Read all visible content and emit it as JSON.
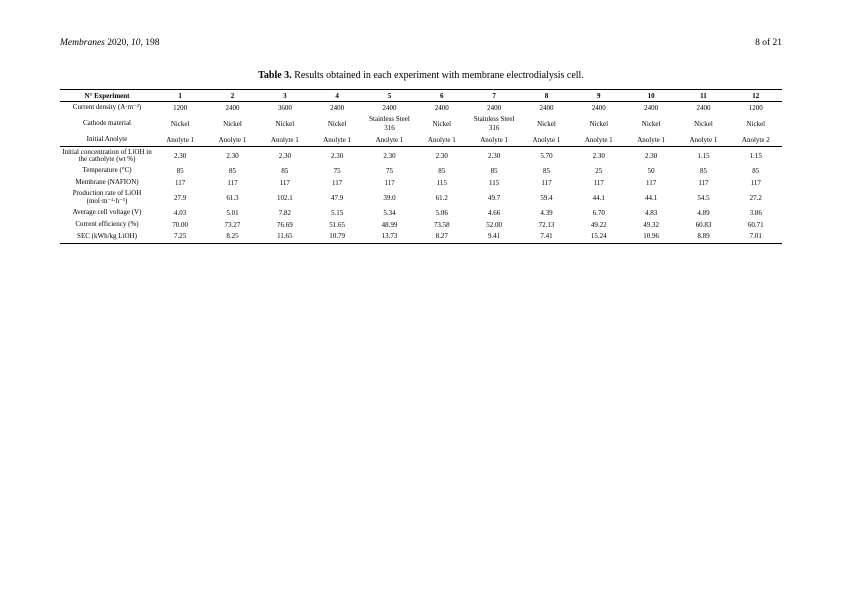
{
  "header": {
    "journal": "Membranes",
    "year": "2020",
    "volume": "10",
    "page_article": "198",
    "page_of": "8 of 21"
  },
  "caption": {
    "label": "Table 3.",
    "text": "Results obtained in each experiment with membrane electrodialysis cell."
  },
  "table": {
    "corner": "N° Experiment",
    "experiments": [
      "1",
      "2",
      "3",
      "4",
      "5",
      "6",
      "7",
      "8",
      "9",
      "10",
      "11",
      "12"
    ],
    "rows": [
      {
        "label": "Current density (A·m⁻²)",
        "vals": [
          "1200",
          "2400",
          "3600",
          "2400",
          "2400",
          "2400",
          "2400",
          "2400",
          "2400",
          "2400",
          "2400",
          "1200"
        ]
      },
      {
        "label": "Cathode material",
        "vals": [
          "Nickel",
          "Nickel",
          "Nickel",
          "Nickel",
          "Stainless Steel 316",
          "Nickel",
          "Stainless Steel 316",
          "Nickel",
          "Nickel",
          "Nickel",
          "Nickel",
          "Nickel"
        ]
      },
      {
        "label": "Initial Anolyte",
        "vals": [
          "Anolyte 1",
          "Anolyte 1",
          "Anolyte 1",
          "Anolyte 1",
          "Anolyte 1",
          "Anolyte 1",
          "Anolyte 1",
          "Anolyte 1",
          "Anolyte 1",
          "Anolyte 1",
          "Anolyte 1",
          "Anolyte 2"
        ]
      },
      {
        "label": "Initial concentration of LiOH in the catholyte (wt %)",
        "vals": [
          "2.30",
          "2.30",
          "2.30",
          "2.30",
          "2.30",
          "2.30",
          "2.30",
          "5.70",
          "2.30",
          "2.30",
          "1.15",
          "1.15"
        ]
      },
      {
        "label": "Temperature (°C)",
        "vals": [
          "85",
          "85",
          "85",
          "75",
          "75",
          "85",
          "85",
          "85",
          "25",
          "50",
          "85",
          "85"
        ]
      },
      {
        "label": "Membrane (NAFION)",
        "vals": [
          "117",
          "117",
          "117",
          "117",
          "117",
          "115",
          "115",
          "117",
          "117",
          "117",
          "117",
          "117"
        ]
      },
      {
        "label": "Production rate of LiOH (mol·m⁻²·h⁻¹)",
        "vals": [
          "27.9",
          "61.3",
          "102.1",
          "47.9",
          "39.0",
          "61.2",
          "49.7",
          "59.4",
          "44.1",
          "44.1",
          "54.5",
          "27.2"
        ]
      },
      {
        "label": "Average cell voltage (V)",
        "vals": [
          "4.03",
          "5.01",
          "7.82",
          "5.15",
          "5.34",
          "5.06",
          "4.66",
          "4.39",
          "6.70",
          "4.83",
          "4.89",
          "3.86"
        ]
      },
      {
        "label": "Current efficiency (%)",
        "vals": [
          "70.00",
          "73.27",
          "76.69",
          "51.65",
          "48.99",
          "73.58",
          "52.00",
          "72.13",
          "49.22",
          "49.32",
          "60.83",
          "60.71"
        ]
      },
      {
        "label": "SEC (kWh/kg LiOH)",
        "vals": [
          "7.25",
          "8.25",
          "11.65",
          "10.79",
          "13.73",
          "8.27",
          "9.41",
          "7.41",
          "15.24",
          "10.96",
          "8.89",
          "7.01"
        ]
      }
    ]
  }
}
